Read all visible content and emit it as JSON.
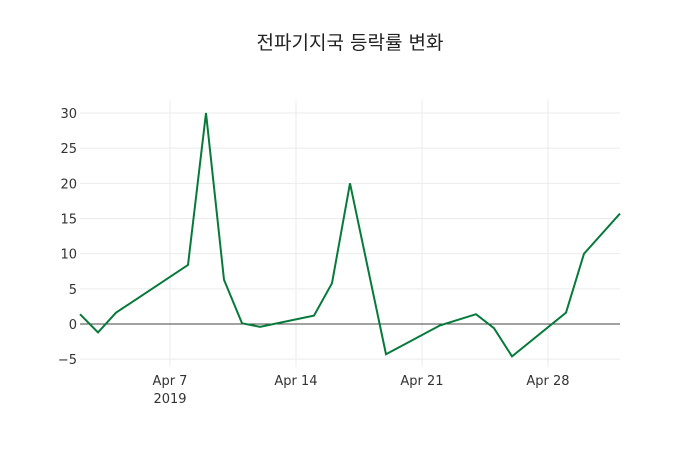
{
  "chart_data": {
    "type": "line",
    "title": "전파기지국 등락률 변화",
    "xlabel": "",
    "ylabel": "",
    "x": [
      "2019-04-02",
      "2019-04-03",
      "2019-04-04",
      "2019-04-08",
      "2019-04-09",
      "2019-04-10",
      "2019-04-11",
      "2019-04-12",
      "2019-04-15",
      "2019-04-16",
      "2019-04-17",
      "2019-04-19",
      "2019-04-22",
      "2019-04-24",
      "2019-04-25",
      "2019-04-26",
      "2019-04-29",
      "2019-04-30",
      "2019-05-02"
    ],
    "series": [
      {
        "name": "등락률",
        "color": "#077a3b",
        "values": [
          1.4,
          -1.2,
          1.6,
          8.4,
          30.0,
          6.3,
          0.1,
          -0.4,
          1.2,
          5.8,
          20.0,
          -4.3,
          -0.2,
          1.4,
          -0.6,
          -4.6,
          1.6,
          10.0,
          15.7
        ]
      }
    ],
    "x_ticks": [
      {
        "date": "2019-04-07",
        "label": "Apr 7",
        "sublabel": "2019"
      },
      {
        "date": "2019-04-14",
        "label": "Apr 14",
        "sublabel": ""
      },
      {
        "date": "2019-04-21",
        "label": "Apr 21",
        "sublabel": ""
      },
      {
        "date": "2019-04-28",
        "label": "Apr 28",
        "sublabel": ""
      }
    ],
    "y_ticks": [
      -5,
      0,
      5,
      10,
      15,
      20,
      25,
      30
    ],
    "ylim": [
      -6.2,
      31.8
    ],
    "xlim": [
      "2019-04-02",
      "2019-05-02"
    ],
    "grid": true,
    "legend": "none"
  }
}
